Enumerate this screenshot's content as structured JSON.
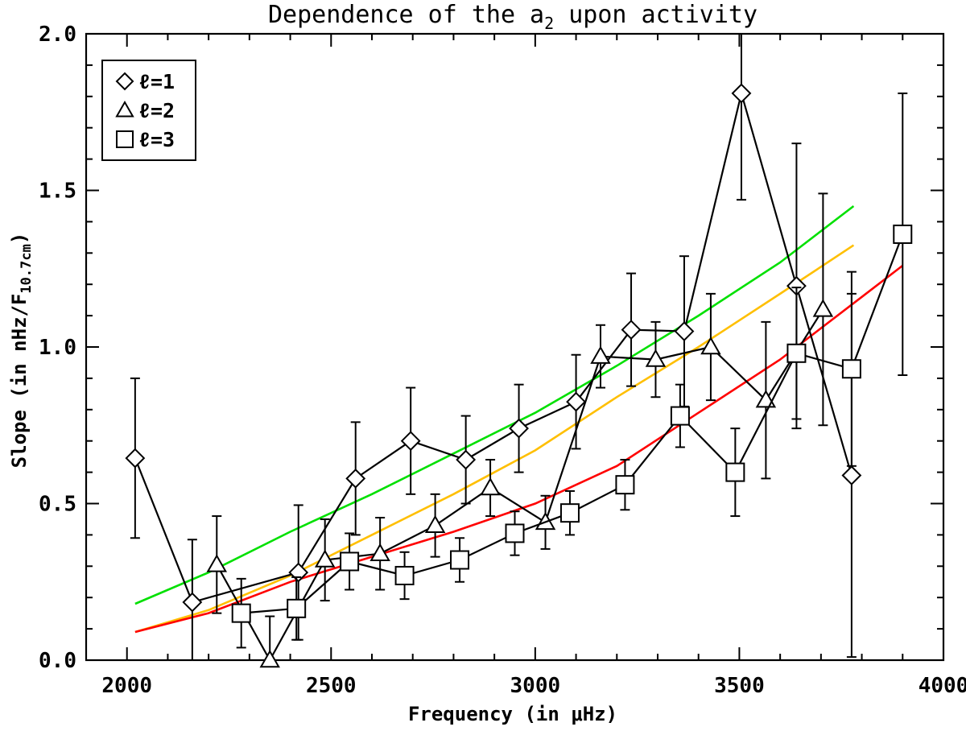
{
  "chart_data": {
    "type": "line",
    "title": "Dependence of the a",
    "title_subscript": "2",
    "title_suffix": " upon activity",
    "xlabel": "Frequency (in μHz)",
    "ylabel": "Slope (in nHz/F",
    "ylabel_subscript": "10.7cm",
    "ylabel_suffix": ")",
    "xlim": [
      1900,
      4000
    ],
    "ylim": [
      0.0,
      2.0
    ],
    "xticks": [
      2000,
      2500,
      3000,
      3500,
      4000
    ],
    "xtick_labels": [
      "2000",
      "2500",
      "3000",
      "3500",
      "4000"
    ],
    "yticks": [
      0.0,
      0.5,
      1.0,
      1.5,
      2.0
    ],
    "ytick_labels": [
      "0.0",
      "0.5",
      "1.0",
      "1.5",
      "2.0"
    ],
    "legend": {
      "position": "top-left",
      "entries": [
        {
          "marker": "diamond",
          "label": "ℓ=1"
        },
        {
          "marker": "triangle",
          "label": "ℓ=2"
        },
        {
          "marker": "square",
          "label": "ℓ=3"
        }
      ]
    },
    "series": [
      {
        "name": "ℓ=1",
        "marker": "diamond",
        "color": "#000000",
        "x": [
          2020,
          2160,
          2420,
          2560,
          2695,
          2830,
          2960,
          3100,
          3235,
          3365,
          3505,
          3640,
          3775
        ],
        "y": [
          0.645,
          0.185,
          0.28,
          0.58,
          0.7,
          0.64,
          0.74,
          0.825,
          1.055,
          1.05,
          1.81,
          1.195,
          0.59
        ],
        "err": [
          0.255,
          0.2,
          0.215,
          0.18,
          0.17,
          0.14,
          0.14,
          0.15,
          0.18,
          0.24,
          0.34,
          0.455,
          0.58
        ]
      },
      {
        "name": "ℓ=2",
        "marker": "triangle",
        "color": "#000000",
        "x": [
          2220,
          2350,
          2485,
          2620,
          2755,
          2890,
          3025,
          3160,
          3295,
          3430,
          3565,
          3705
        ],
        "y": [
          0.305,
          0.0,
          0.32,
          0.34,
          0.43,
          0.55,
          0.44,
          0.97,
          0.96,
          1.0,
          0.83,
          1.12
        ],
        "err": [
          0.155,
          0.14,
          0.13,
          0.115,
          0.1,
          0.09,
          0.085,
          0.1,
          0.12,
          0.17,
          0.25,
          0.37
        ]
      },
      {
        "name": "ℓ=3",
        "marker": "square",
        "color": "#000000",
        "x": [
          2280,
          2415,
          2545,
          2680,
          2815,
          2950,
          3085,
          3220,
          3355,
          3490,
          3640,
          3775,
          3900
        ],
        "y": [
          0.15,
          0.165,
          0.315,
          0.27,
          0.32,
          0.405,
          0.47,
          0.56,
          0.78,
          0.6,
          0.98,
          0.93,
          1.36
        ],
        "err": [
          0.11,
          0.1,
          0.09,
          0.075,
          0.07,
          0.07,
          0.07,
          0.08,
          0.1,
          0.14,
          0.21,
          0.31,
          0.45
        ]
      },
      {
        "name": "green model",
        "marker": "none",
        "color": "#00e000",
        "x": [
          2020,
          2200,
          2400,
          2600,
          2800,
          3000,
          3200,
          3400,
          3600,
          3780
        ],
        "y": [
          0.18,
          0.28,
          0.41,
          0.53,
          0.66,
          0.79,
          0.94,
          1.1,
          1.27,
          1.45
        ]
      },
      {
        "name": "orange model",
        "marker": "none",
        "color": "#ffbf00",
        "x": [
          2020,
          2200,
          2400,
          2600,
          2800,
          3000,
          3200,
          3400,
          3600,
          3780
        ],
        "y": [
          0.09,
          0.16,
          0.27,
          0.4,
          0.53,
          0.67,
          0.84,
          1.0,
          1.17,
          1.325
        ]
      },
      {
        "name": "red model",
        "marker": "none",
        "color": "#ff0000",
        "x": [
          2020,
          2200,
          2400,
          2600,
          2800,
          3000,
          3200,
          3400,
          3600,
          3800,
          3900
        ],
        "y": [
          0.09,
          0.15,
          0.25,
          0.33,
          0.41,
          0.5,
          0.62,
          0.79,
          0.96,
          1.16,
          1.26
        ]
      }
    ]
  }
}
